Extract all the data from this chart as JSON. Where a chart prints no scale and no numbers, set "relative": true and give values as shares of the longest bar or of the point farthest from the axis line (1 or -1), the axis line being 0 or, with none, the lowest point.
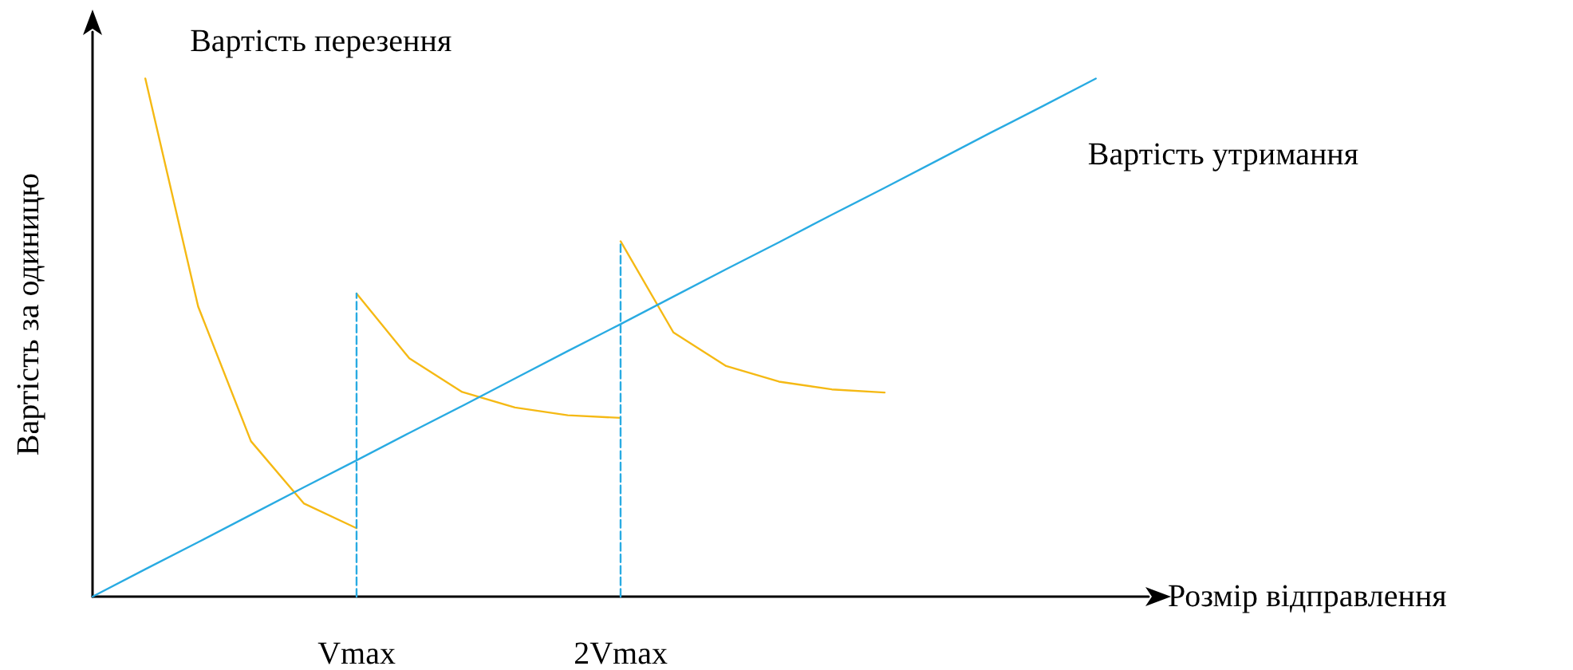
{
  "chart_data": {
    "type": "line",
    "relative": true,
    "xlabel": "Розмір відправлення",
    "ylabel": "Вартість за одиницю",
    "categories": [
      null,
      null,
      null,
      null,
      null,
      "Vmax",
      null,
      null,
      null,
      null,
      "2Vmax",
      null,
      null,
      null,
      null,
      null,
      null,
      null,
      null,
      null,
      null
    ],
    "grid": false,
    "legend": false,
    "marker": "none",
    "series": [
      {
        "name": "Вартість перезення",
        "color": "#f5b914",
        "values": [
          null,
          1.0,
          0.56,
          0.3,
          0.18,
          0.132,
          null,
          null,
          null,
          null,
          null,
          null,
          null,
          null,
          null,
          null,
          null,
          null,
          null,
          null,
          null
        ]
      },
      {
        "color": "#f5b914",
        "values": [
          null,
          null,
          null,
          null,
          null,
          0.585,
          0.46,
          0.395,
          0.365,
          0.35,
          0.345,
          null,
          null,
          null,
          null,
          null,
          null,
          null,
          null,
          null,
          null
        ]
      },
      {
        "color": "#f5b914",
        "values": [
          null,
          null,
          null,
          null,
          null,
          null,
          null,
          null,
          null,
          null,
          0.686,
          0.51,
          0.445,
          0.415,
          0.4,
          0.394,
          null,
          null,
          null,
          null,
          null
        ]
      },
      {
        "name": "Вартість утримання",
        "color": "#29abe2",
        "values": [
          0,
          0.053,
          0.105,
          0.158,
          0.211,
          0.263,
          0.316,
          0.368,
          0.421,
          0.474,
          0.526,
          0.579,
          0.632,
          0.684,
          0.737,
          0.789,
          0.842,
          0.895,
          0.947,
          1.0,
          null
        ]
      },
      {
        "color": "#29abe2",
        "line_style": "dashed",
        "x": [
          "Vmax",
          "Vmax"
        ],
        "values": [
          0,
          0.585
        ]
      },
      {
        "color": "#29abe2",
        "line_style": "dashed",
        "x": [
          "2Vmax",
          "2Vmax"
        ],
        "values": [
          0,
          0.686
        ]
      }
    ]
  }
}
